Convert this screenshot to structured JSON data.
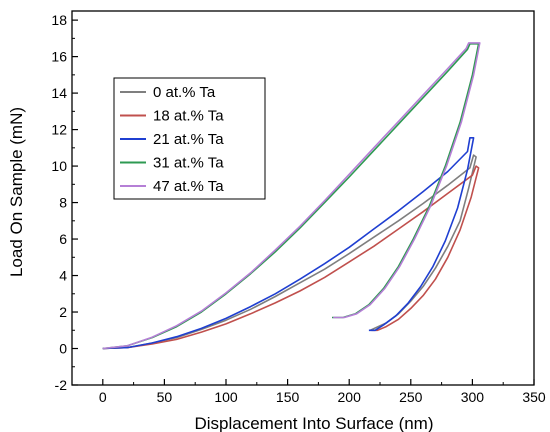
{
  "chart_data": {
    "type": "line",
    "title": "",
    "xlabel": "Displacement Into Surface (nm)",
    "ylabel": "Load On Sample (mN)",
    "xlim": [
      -25,
      350
    ],
    "ylim": [
      -2,
      18.5
    ],
    "xticks": [
      0,
      50,
      100,
      150,
      200,
      250,
      300,
      350
    ],
    "yticks": [
      -2,
      0,
      2,
      4,
      6,
      8,
      10,
      12,
      14,
      16,
      18
    ],
    "grid": false,
    "legend_position": "top-left",
    "series": [
      {
        "name": "0 at.% Ta",
        "color": "#7f7f7f",
        "points": [
          [
            0,
            0
          ],
          [
            20,
            0.05
          ],
          [
            40,
            0.3
          ],
          [
            60,
            0.6
          ],
          [
            80,
            1.05
          ],
          [
            100,
            1.55
          ],
          [
            120,
            2.15
          ],
          [
            140,
            2.85
          ],
          [
            160,
            3.6
          ],
          [
            180,
            4.35
          ],
          [
            200,
            5.2
          ],
          [
            220,
            6.1
          ],
          [
            240,
            7.0
          ],
          [
            260,
            7.95
          ],
          [
            280,
            8.95
          ],
          [
            298,
            9.9
          ],
          [
            301,
            10.6
          ],
          [
            303,
            10.5
          ],
          [
            297,
            8.8
          ],
          [
            290,
            7.0
          ],
          [
            280,
            5.6
          ],
          [
            270,
            4.4
          ],
          [
            260,
            3.4
          ],
          [
            250,
            2.6
          ],
          [
            240,
            1.9
          ],
          [
            230,
            1.4
          ],
          [
            222,
            1.15
          ],
          [
            217,
            1.0
          ]
        ]
      },
      {
        "name": "18 at.% Ta",
        "color": "#c0504d",
        "points": [
          [
            0,
            0
          ],
          [
            20,
            0.05
          ],
          [
            40,
            0.25
          ],
          [
            60,
            0.5
          ],
          [
            80,
            0.9
          ],
          [
            100,
            1.35
          ],
          [
            120,
            1.9
          ],
          [
            140,
            2.5
          ],
          [
            160,
            3.15
          ],
          [
            180,
            3.9
          ],
          [
            200,
            4.75
          ],
          [
            220,
            5.6
          ],
          [
            240,
            6.55
          ],
          [
            260,
            7.5
          ],
          [
            280,
            8.5
          ],
          [
            300,
            9.5
          ],
          [
            303,
            10.0
          ],
          [
            305,
            9.9
          ],
          [
            299,
            8.3
          ],
          [
            290,
            6.5
          ],
          [
            280,
            5.0
          ],
          [
            270,
            3.8
          ],
          [
            260,
            2.9
          ],
          [
            250,
            2.2
          ],
          [
            240,
            1.6
          ],
          [
            230,
            1.2
          ],
          [
            223,
            1.0
          ],
          [
            218,
            1.0
          ]
        ]
      },
      {
        "name": "21 at.% Ta",
        "color": "#1f3fd1",
        "points": [
          [
            0,
            0
          ],
          [
            20,
            0.05
          ],
          [
            40,
            0.3
          ],
          [
            60,
            0.65
          ],
          [
            80,
            1.1
          ],
          [
            100,
            1.65
          ],
          [
            120,
            2.3
          ],
          [
            140,
            3.0
          ],
          [
            160,
            3.8
          ],
          [
            180,
            4.65
          ],
          [
            200,
            5.55
          ],
          [
            220,
            6.55
          ],
          [
            240,
            7.55
          ],
          [
            260,
            8.6
          ],
          [
            280,
            9.7
          ],
          [
            296,
            10.8
          ],
          [
            298,
            11.55
          ],
          [
            301,
            11.55
          ],
          [
            296,
            9.8
          ],
          [
            288,
            7.7
          ],
          [
            278,
            5.9
          ],
          [
            268,
            4.5
          ],
          [
            258,
            3.4
          ],
          [
            248,
            2.5
          ],
          [
            238,
            1.8
          ],
          [
            228,
            1.3
          ],
          [
            221,
            1.0
          ],
          [
            216,
            1.0
          ]
        ]
      },
      {
        "name": "31 at.% Ta",
        "color": "#2e9a52",
        "points": [
          [
            0,
            0
          ],
          [
            20,
            0.15
          ],
          [
            40,
            0.6
          ],
          [
            60,
            1.2
          ],
          [
            80,
            2.0
          ],
          [
            100,
            3.0
          ],
          [
            120,
            4.1
          ],
          [
            140,
            5.3
          ],
          [
            160,
            6.6
          ],
          [
            180,
            8.0
          ],
          [
            200,
            9.4
          ],
          [
            220,
            10.85
          ],
          [
            240,
            12.3
          ],
          [
            260,
            13.75
          ],
          [
            280,
            15.2
          ],
          [
            296,
            16.4
          ],
          [
            298,
            16.7
          ],
          [
            305,
            16.7
          ],
          [
            300,
            15.0
          ],
          [
            290,
            12.4
          ],
          [
            278,
            10.0
          ],
          [
            265,
            7.8
          ],
          [
            252,
            6.0
          ],
          [
            240,
            4.5
          ],
          [
            228,
            3.3
          ],
          [
            216,
            2.4
          ],
          [
            205,
            1.9
          ],
          [
            195,
            1.7
          ],
          [
            186,
            1.7
          ]
        ]
      },
      {
        "name": "47 at.% Ta",
        "color": "#b57fd6",
        "points": [
          [
            0,
            0
          ],
          [
            20,
            0.15
          ],
          [
            40,
            0.62
          ],
          [
            60,
            1.25
          ],
          [
            80,
            2.05
          ],
          [
            100,
            3.05
          ],
          [
            120,
            4.15
          ],
          [
            140,
            5.4
          ],
          [
            160,
            6.7
          ],
          [
            180,
            8.1
          ],
          [
            200,
            9.55
          ],
          [
            220,
            11.0
          ],
          [
            240,
            12.45
          ],
          [
            260,
            13.9
          ],
          [
            280,
            15.35
          ],
          [
            295,
            16.45
          ],
          [
            297,
            16.75
          ],
          [
            306,
            16.75
          ],
          [
            301,
            15.0
          ],
          [
            291,
            12.4
          ],
          [
            279,
            10.0
          ],
          [
            266,
            7.8
          ],
          [
            253,
            6.0
          ],
          [
            241,
            4.5
          ],
          [
            229,
            3.3
          ],
          [
            217,
            2.4
          ],
          [
            206,
            1.9
          ],
          [
            196,
            1.7
          ],
          [
            187,
            1.7
          ]
        ]
      }
    ]
  }
}
